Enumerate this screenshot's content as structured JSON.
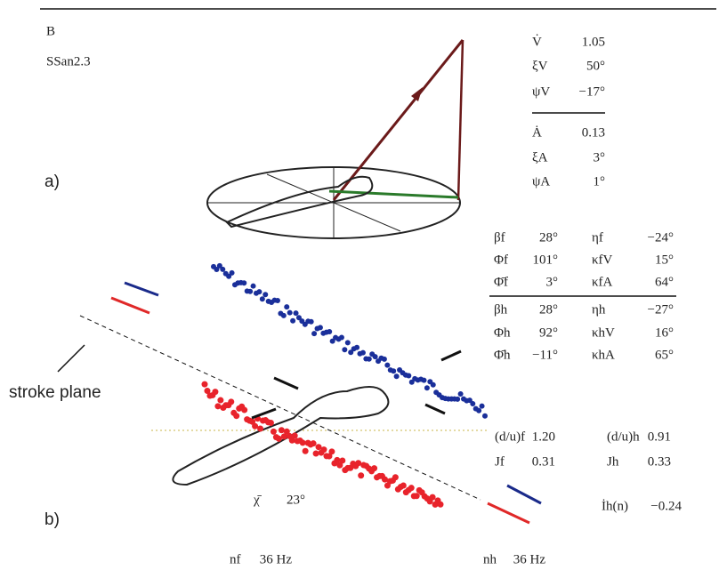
{
  "header": {
    "panel": "B",
    "specimen": "SSan2.3"
  },
  "panel_a": {
    "label": "a)",
    "params": [
      {
        "symbol": "V̇",
        "value": "1.05"
      },
      {
        "symbol": "ξV",
        "value": "50°"
      },
      {
        "symbol": "ψV",
        "value": "−17°"
      },
      {
        "symbol": "Ȧ",
        "value": "0.13"
      },
      {
        "symbol": "ξA",
        "value": "3°"
      },
      {
        "symbol": "ψA",
        "value": "1°"
      }
    ]
  },
  "panel_b": {
    "label": "b)",
    "annotation": "stroke plane",
    "wing_params": [
      [
        {
          "symbol": "βf",
          "value": "28°"
        },
        {
          "symbol": "ηf",
          "value": "−24°"
        }
      ],
      [
        {
          "symbol": "Φf",
          "value": "101°"
        },
        {
          "symbol": "κfV",
          "value": "15°"
        }
      ],
      [
        {
          "symbol": "Φ̄f",
          "value": "3°"
        },
        {
          "symbol": "κfA",
          "value": "64°"
        }
      ],
      [
        {
          "symbol": "βh",
          "value": "28°"
        },
        {
          "symbol": "ηh",
          "value": "−27°"
        }
      ],
      [
        {
          "symbol": "Φh",
          "value": "92°"
        },
        {
          "symbol": "κhV",
          "value": "16°"
        }
      ],
      [
        {
          "symbol": "Φ̄h",
          "value": "−11°"
        },
        {
          "symbol": "κhA",
          "value": "65°"
        }
      ]
    ],
    "flow_params": [
      [
        {
          "symbol": "(d/u)f",
          "value": "1.20"
        },
        {
          "symbol": "(d/u)h",
          "value": "0.91"
        }
      ],
      [
        {
          "symbol": "Jf",
          "value": "0.31"
        },
        {
          "symbol": "Jh",
          "value": "0.33"
        }
      ]
    ],
    "body_angle": {
      "symbol": "χ̄",
      "value": "23°"
    },
    "impulse": {
      "symbol": "İh(n)",
      "value": "−0.24"
    },
    "frequencies": [
      {
        "symbol": "nf",
        "value": "36 Hz"
      },
      {
        "symbol": "nh",
        "value": "36 Hz"
      }
    ]
  }
}
